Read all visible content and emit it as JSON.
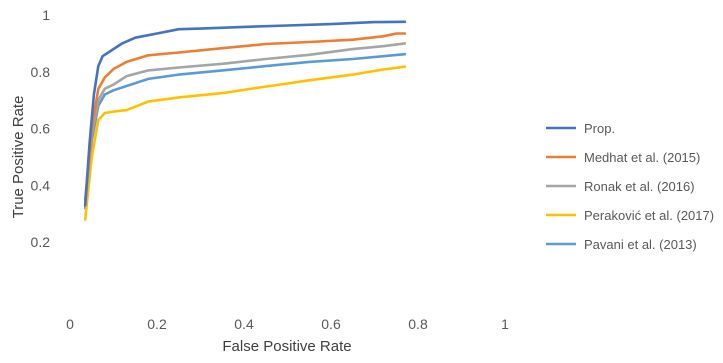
{
  "chart_data": {
    "type": "line",
    "title": "",
    "xlabel": "False Positive Rate",
    "ylabel": "True Positive Rate",
    "xlim": [
      0,
      1
    ],
    "ylim": [
      0,
      1
    ],
    "xticks": [
      "0",
      "0.2",
      "0.4",
      "0.6",
      "0.8",
      "1"
    ],
    "yticks": [
      "0.2",
      "0.4",
      "0.6",
      "0.8",
      "1"
    ],
    "grid": false,
    "legend_position": "right",
    "series": [
      {
        "name": "Prop.",
        "color": "#4472C4",
        "points": [
          [
            0.035,
            0.33
          ],
          [
            0.045,
            0.55
          ],
          [
            0.055,
            0.72
          ],
          [
            0.065,
            0.82
          ],
          [
            0.075,
            0.855
          ],
          [
            0.09,
            0.87
          ],
          [
            0.12,
            0.9
          ],
          [
            0.15,
            0.92
          ],
          [
            0.2,
            0.935
          ],
          [
            0.25,
            0.95
          ],
          [
            0.3,
            0.952
          ],
          [
            0.4,
            0.958
          ],
          [
            0.5,
            0.963
          ],
          [
            0.6,
            0.968
          ],
          [
            0.7,
            0.975
          ],
          [
            0.77,
            0.976
          ]
        ]
      },
      {
        "name": "Medhat et al. (2015)",
        "color": "#ED7D31",
        "points": [
          [
            0.035,
            0.35
          ],
          [
            0.05,
            0.6
          ],
          [
            0.065,
            0.74
          ],
          [
            0.08,
            0.78
          ],
          [
            0.1,
            0.81
          ],
          [
            0.13,
            0.835
          ],
          [
            0.18,
            0.858
          ],
          [
            0.25,
            0.868
          ],
          [
            0.35,
            0.883
          ],
          [
            0.45,
            0.898
          ],
          [
            0.55,
            0.905
          ],
          [
            0.65,
            0.913
          ],
          [
            0.72,
            0.925
          ],
          [
            0.75,
            0.935
          ],
          [
            0.77,
            0.935
          ]
        ]
      },
      {
        "name": "Ronak et al. (2016)",
        "color": "#A5A5A5",
        "points": [
          [
            0.035,
            0.33
          ],
          [
            0.05,
            0.58
          ],
          [
            0.065,
            0.7
          ],
          [
            0.08,
            0.74
          ],
          [
            0.1,
            0.755
          ],
          [
            0.13,
            0.785
          ],
          [
            0.18,
            0.805
          ],
          [
            0.25,
            0.815
          ],
          [
            0.35,
            0.828
          ],
          [
            0.45,
            0.845
          ],
          [
            0.55,
            0.86
          ],
          [
            0.65,
            0.88
          ],
          [
            0.72,
            0.89
          ],
          [
            0.77,
            0.9
          ]
        ]
      },
      {
        "name": "Peraković et al. (2017)",
        "color": "#FFC000",
        "points": [
          [
            0.035,
            0.28
          ],
          [
            0.05,
            0.5
          ],
          [
            0.065,
            0.63
          ],
          [
            0.08,
            0.655
          ],
          [
            0.1,
            0.66
          ],
          [
            0.13,
            0.665
          ],
          [
            0.18,
            0.695
          ],
          [
            0.25,
            0.71
          ],
          [
            0.35,
            0.725
          ],
          [
            0.45,
            0.748
          ],
          [
            0.55,
            0.77
          ],
          [
            0.65,
            0.79
          ],
          [
            0.72,
            0.808
          ],
          [
            0.77,
            0.818
          ]
        ]
      },
      {
        "name": "Pavani et al. (2013)",
        "color": "#5B9BD5",
        "points": [
          [
            0.035,
            0.32
          ],
          [
            0.05,
            0.56
          ],
          [
            0.065,
            0.68
          ],
          [
            0.08,
            0.72
          ],
          [
            0.1,
            0.735
          ],
          [
            0.13,
            0.75
          ],
          [
            0.18,
            0.775
          ],
          [
            0.25,
            0.79
          ],
          [
            0.35,
            0.805
          ],
          [
            0.45,
            0.82
          ],
          [
            0.55,
            0.835
          ],
          [
            0.65,
            0.845
          ],
          [
            0.72,
            0.855
          ],
          [
            0.77,
            0.862
          ]
        ]
      }
    ]
  }
}
